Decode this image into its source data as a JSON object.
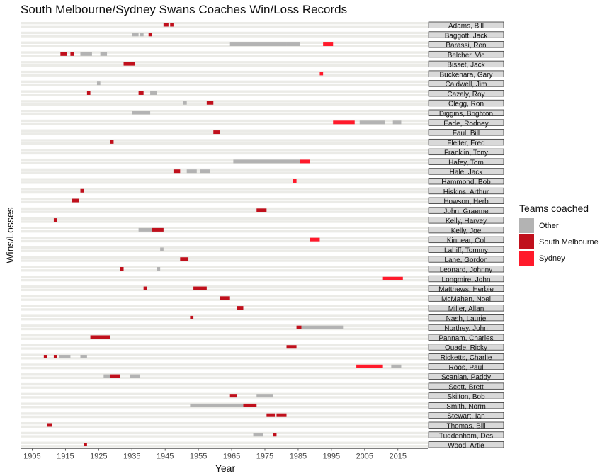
{
  "chart_data": {
    "type": "bar",
    "title": "South Melbourne/Sydney Swans Coaches Win/Loss Records",
    "xlabel": "Year",
    "ylabel": "Wins/Losses",
    "xlim": [
      1901.5,
      2024
    ],
    "x_ticks": [
      1905,
      1915,
      1925,
      1935,
      1945,
      1955,
      1965,
      1975,
      1985,
      1995,
      2005,
      2015
    ],
    "grid": true,
    "legend_position": "right",
    "legend": {
      "title": "Teams coached",
      "items": [
        {
          "label": "Other",
          "color": "#b3b3b3"
        },
        {
          "label": "South Melbourne",
          "color": "#c0101c"
        },
        {
          "label": "Sydney",
          "color": "#ff1a2b"
        }
      ]
    },
    "facets": [
      {
        "name": "Adams, Bill",
        "segments": [
          {
            "start": 1944.5,
            "end": 1946,
            "team": "South Melbourne"
          },
          {
            "start": 1946.5,
            "end": 1947.5,
            "team": "South Melbourne"
          }
        ]
      },
      {
        "name": "Baggott, Jack",
        "segments": [
          {
            "start": 1935,
            "end": 1937,
            "team": "Other"
          },
          {
            "start": 1937.5,
            "end": 1938.5,
            "team": "Other"
          },
          {
            "start": 1940,
            "end": 1941,
            "team": "South Melbourne"
          }
        ]
      },
      {
        "name": "Barassi, Ron",
        "segments": [
          {
            "start": 1964.5,
            "end": 1981.5,
            "team": "Other"
          },
          {
            "start": 1981.5,
            "end": 1985.5,
            "team": "Other"
          },
          {
            "start": 1992.5,
            "end": 1995.5,
            "team": "Sydney"
          }
        ]
      },
      {
        "name": "Belcher, Vic",
        "segments": [
          {
            "start": 1913.5,
            "end": 1915.5,
            "team": "South Melbourne"
          },
          {
            "start": 1916.5,
            "end": 1917.5,
            "team": "South Melbourne"
          },
          {
            "start": 1919.5,
            "end": 1923,
            "team": "Other"
          },
          {
            "start": 1925.5,
            "end": 1927.5,
            "team": "Other"
          }
        ]
      },
      {
        "name": "Bisset, Jack",
        "segments": [
          {
            "start": 1932.5,
            "end": 1936,
            "team": "South Melbourne"
          }
        ]
      },
      {
        "name": "Buckenara, Gary",
        "segments": [
          {
            "start": 1991.5,
            "end": 1992.5,
            "team": "Sydney"
          }
        ]
      },
      {
        "name": "Caldwell, Jim",
        "segments": [
          {
            "start": 1924.5,
            "end": 1925.5,
            "team": "Other"
          }
        ]
      },
      {
        "name": "Cazaly, Roy",
        "segments": [
          {
            "start": 1921.5,
            "end": 1922.5,
            "team": "South Melbourne"
          },
          {
            "start": 1937,
            "end": 1938.5,
            "team": "South Melbourne"
          },
          {
            "start": 1940.5,
            "end": 1942.5,
            "team": "Other"
          }
        ]
      },
      {
        "name": "Clegg, Ron",
        "segments": [
          {
            "start": 1950.5,
            "end": 1951.5,
            "team": "Other"
          },
          {
            "start": 1957.5,
            "end": 1959.5,
            "team": "South Melbourne"
          }
        ]
      },
      {
        "name": "Diggins, Brighton",
        "segments": [
          {
            "start": 1935,
            "end": 1937.5,
            "team": "Other"
          },
          {
            "start": 1937.5,
            "end": 1940.5,
            "team": "Other"
          }
        ]
      },
      {
        "name": "Eade, Rodney",
        "segments": [
          {
            "start": 1995.5,
            "end": 2002,
            "team": "Sydney"
          },
          {
            "start": 2003.5,
            "end": 2011,
            "team": "Other"
          },
          {
            "start": 2013.5,
            "end": 2016,
            "team": "Other"
          }
        ]
      },
      {
        "name": "Faul, Bill",
        "segments": [
          {
            "start": 1959.5,
            "end": 1961.5,
            "team": "South Melbourne"
          }
        ]
      },
      {
        "name": "Fleiter, Fred",
        "segments": [
          {
            "start": 1928.5,
            "end": 1929.5,
            "team": "South Melbourne"
          }
        ]
      },
      {
        "name": "Franklin, Tony",
        "segments": []
      },
      {
        "name": "Hafey, Tom",
        "segments": [
          {
            "start": 1965.5,
            "end": 1983.5,
            "team": "Other"
          },
          {
            "start": 1983.5,
            "end": 1985.5,
            "team": "Other"
          },
          {
            "start": 1985.5,
            "end": 1988.5,
            "team": "Sydney"
          }
        ]
      },
      {
        "name": "Hale, Jack",
        "segments": [
          {
            "start": 1947.5,
            "end": 1949.5,
            "team": "South Melbourne"
          },
          {
            "start": 1951.5,
            "end": 1954.5,
            "team": "Other"
          },
          {
            "start": 1955.5,
            "end": 1958.5,
            "team": "Other"
          }
        ]
      },
      {
        "name": "Hammond, Bob",
        "segments": [
          {
            "start": 1983.5,
            "end": 1984.5,
            "team": "Sydney"
          }
        ]
      },
      {
        "name": "Hiskins, Arthur",
        "segments": [
          {
            "start": 1919.5,
            "end": 1920.5,
            "team": "South Melbourne"
          }
        ]
      },
      {
        "name": "Howson, Herb",
        "segments": [
          {
            "start": 1917,
            "end": 1919,
            "team": "South Melbourne"
          }
        ]
      },
      {
        "name": "John, Graeme",
        "segments": [
          {
            "start": 1972.5,
            "end": 1975.5,
            "team": "South Melbourne"
          }
        ]
      },
      {
        "name": "Kelly, Harvey",
        "segments": [
          {
            "start": 1911.5,
            "end": 1912.5,
            "team": "South Melbourne"
          }
        ]
      },
      {
        "name": "Kelly, Joe",
        "segments": [
          {
            "start": 1937,
            "end": 1944.5,
            "team": "Other"
          },
          {
            "start": 1941,
            "end": 1944.5,
            "team": "South Melbourne"
          }
        ]
      },
      {
        "name": "Kinnear, Col",
        "segments": [
          {
            "start": 1988.5,
            "end": 1991.5,
            "team": "Sydney"
          }
        ]
      },
      {
        "name": "Lahiff, Tommy",
        "segments": [
          {
            "start": 1943.5,
            "end": 1944.5,
            "team": "Other"
          }
        ]
      },
      {
        "name": "Lane, Gordon",
        "segments": [
          {
            "start": 1949.5,
            "end": 1952,
            "team": "South Melbourne"
          }
        ]
      },
      {
        "name": "Leonard, Johnny",
        "segments": [
          {
            "start": 1931.5,
            "end": 1932.5,
            "team": "South Melbourne"
          },
          {
            "start": 1942.5,
            "end": 1943.5,
            "team": "Other"
          }
        ]
      },
      {
        "name": "Longmire, John",
        "segments": [
          {
            "start": 2010.5,
            "end": 2016.5,
            "team": "Sydney"
          }
        ]
      },
      {
        "name": "Matthews, Herbie",
        "segments": [
          {
            "start": 1938.5,
            "end": 1939.5,
            "team": "South Melbourne"
          },
          {
            "start": 1953.5,
            "end": 1957.5,
            "team": "South Melbourne"
          }
        ]
      },
      {
        "name": "McMahen, Noel",
        "segments": [
          {
            "start": 1961.5,
            "end": 1964.5,
            "team": "South Melbourne"
          }
        ]
      },
      {
        "name": "Miller, Allan",
        "segments": [
          {
            "start": 1966.5,
            "end": 1968.5,
            "team": "South Melbourne"
          }
        ]
      },
      {
        "name": "Nash, Laurie",
        "segments": [
          {
            "start": 1952.5,
            "end": 1953.5,
            "team": "South Melbourne"
          }
        ]
      },
      {
        "name": "Northey, John",
        "segments": [
          {
            "start": 1984.5,
            "end": 1986,
            "team": "South Melbourne"
          },
          {
            "start": 1986,
            "end": 1998.5,
            "team": "Other"
          }
        ]
      },
      {
        "name": "Pannam, Charles",
        "segments": [
          {
            "start": 1922.5,
            "end": 1928.5,
            "team": "South Melbourne"
          }
        ]
      },
      {
        "name": "Quade, Ricky",
        "segments": [
          {
            "start": 1981.5,
            "end": 1984.5,
            "team": "South Melbourne"
          }
        ]
      },
      {
        "name": "Ricketts, Charlie",
        "segments": [
          {
            "start": 1908.5,
            "end": 1909.5,
            "team": "South Melbourne"
          },
          {
            "start": 1911.5,
            "end": 1912.5,
            "team": "South Melbourne"
          },
          {
            "start": 1913,
            "end": 1916.5,
            "team": "Other"
          },
          {
            "start": 1919.5,
            "end": 1921.5,
            "team": "Other"
          }
        ]
      },
      {
        "name": "Roos, Paul",
        "segments": [
          {
            "start": 2002.5,
            "end": 2010.5,
            "team": "Sydney"
          },
          {
            "start": 2013,
            "end": 2016,
            "team": "Other"
          }
        ]
      },
      {
        "name": "Scanlan, Paddy",
        "segments": [
          {
            "start": 1926.5,
            "end": 1928.5,
            "team": "Other"
          },
          {
            "start": 1928.5,
            "end": 1931.5,
            "team": "South Melbourne"
          },
          {
            "start": 1934.5,
            "end": 1937.5,
            "team": "Other"
          }
        ]
      },
      {
        "name": "Scott, Brett",
        "segments": []
      },
      {
        "name": "Skilton, Bob",
        "segments": [
          {
            "start": 1964.5,
            "end": 1966.5,
            "team": "South Melbourne"
          },
          {
            "start": 1972.5,
            "end": 1977.5,
            "team": "Other"
          }
        ]
      },
      {
        "name": "Smith, Norm",
        "segments": [
          {
            "start": 1952.5,
            "end": 1968.5,
            "team": "Other"
          },
          {
            "start": 1968.5,
            "end": 1972.5,
            "team": "South Melbourne"
          }
        ]
      },
      {
        "name": "Stewart, Ian",
        "segments": [
          {
            "start": 1975.5,
            "end": 1978,
            "team": "South Melbourne"
          },
          {
            "start": 1978.5,
            "end": 1981.5,
            "team": "South Melbourne"
          }
        ]
      },
      {
        "name": "Thomas, Bill",
        "segments": [
          {
            "start": 1909.5,
            "end": 1911,
            "team": "South Melbourne"
          }
        ]
      },
      {
        "name": "Tuddenham, Des",
        "segments": [
          {
            "start": 1971.5,
            "end": 1974.5,
            "team": "Other"
          },
          {
            "start": 1977.5,
            "end": 1978.5,
            "team": "South Melbourne"
          }
        ]
      },
      {
        "name": "Wood, Artie",
        "segments": [
          {
            "start": 1920.5,
            "end": 1921.5,
            "team": "South Melbourne"
          }
        ]
      }
    ]
  }
}
